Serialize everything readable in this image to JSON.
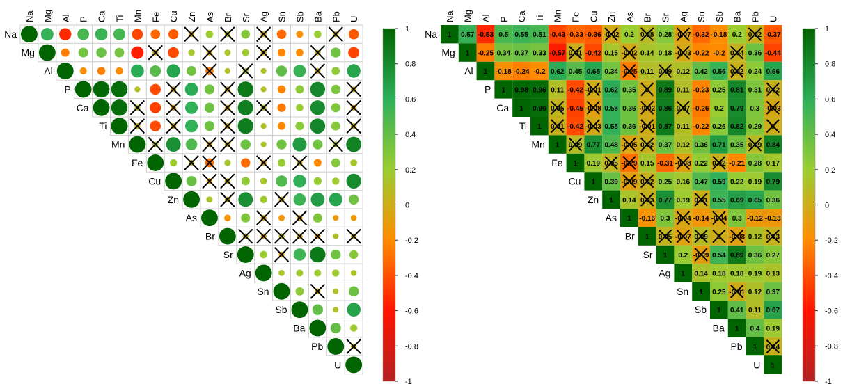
{
  "chart_data": [
    {
      "type": "heatmap",
      "style": "circle",
      "shape": "upper-triangle",
      "variables": [
        "Na",
        "Mg",
        "Al",
        "P",
        "Ca",
        "Ti",
        "Mn",
        "Fe",
        "Cu",
        "Zn",
        "As",
        "Br",
        "Sr",
        "Ag",
        "Sn",
        "Sb",
        "Ba",
        "Pb",
        "U"
      ],
      "colorbar": {
        "ticks": [
          "1",
          "0.8",
          "0.6",
          "0.4",
          "0.2",
          "0",
          "-0.2",
          "-0.4",
          "-0.6",
          "-0.8",
          "-1"
        ],
        "range": [
          -1,
          1
        ]
      },
      "insignificant_marker": "X"
    },
    {
      "type": "heatmap",
      "style": "number",
      "shape": "upper-triangle",
      "variables": [
        "Na",
        "Mg",
        "Al",
        "P",
        "Ca",
        "Ti",
        "Mn",
        "Fe",
        "Cu",
        "Zn",
        "As",
        "Br",
        "Sr",
        "Ag",
        "Sn",
        "Sb",
        "Ba",
        "Pb",
        "U"
      ],
      "colorbar": {
        "ticks": [
          "1",
          "0.8",
          "0.6",
          "0.4",
          "0.2",
          "0",
          "-0.2",
          "-0.4",
          "-0.6",
          "-0.8",
          "-1"
        ],
        "range": [
          -1,
          1
        ]
      },
      "insignificant_marker": "X",
      "matrix": [
        [
          1,
          0.57,
          -0.53,
          0.5,
          0.55,
          0.51,
          -0.43,
          -0.33,
          -0.36,
          -0.02,
          0.2,
          0.08,
          0.28,
          -0.07,
          -0.32,
          -0.18,
          0.2,
          0.02,
          -0.37
        ],
        [
          null,
          1,
          -0.25,
          0.34,
          0.37,
          0.33,
          -0.57,
          0.01,
          -0.42,
          0.15,
          -0.02,
          0.14,
          0.18,
          -0.03,
          -0.22,
          -0.2,
          0.04,
          0.36,
          -0.44
        ],
        [
          null,
          null,
          1,
          -0.18,
          -0.24,
          -0.2,
          0.62,
          0.45,
          0.65,
          0.34,
          -0.25,
          0.11,
          0.09,
          0.12,
          0.42,
          0.56,
          0.02,
          0.24,
          0.66
        ],
        [
          null,
          null,
          null,
          1,
          0.98,
          0.96,
          0.11,
          -0.42,
          -0.01,
          0.62,
          0.35,
          0.0,
          0.89,
          0.11,
          -0.23,
          0.25,
          0.81,
          0.31,
          0.02
        ],
        [
          null,
          null,
          null,
          null,
          1,
          0.96,
          0.05,
          -0.45,
          -0.08,
          0.58,
          0.36,
          -0.02,
          0.86,
          0.07,
          -0.26,
          0.2,
          0.79,
          0.3,
          -0.03
        ],
        [
          null,
          null,
          null,
          null,
          null,
          1,
          0.01,
          -0.42,
          -0.03,
          0.58,
          0.36,
          -0.01,
          0.87,
          0.11,
          -0.22,
          0.26,
          0.82,
          0.29,
          0.0
        ],
        [
          null,
          null,
          null,
          null,
          null,
          null,
          1,
          0.09,
          0.77,
          0.48,
          -0.05,
          0.02,
          0.37,
          0.12,
          0.36,
          0.71,
          0.35,
          0.09,
          0.84
        ],
        [
          null,
          null,
          null,
          null,
          null,
          null,
          null,
          1,
          0.19,
          0.05,
          -0.29,
          0.15,
          -0.31,
          -0.08,
          0.22,
          0.02,
          -0.21,
          0.28,
          0.17
        ],
        [
          null,
          null,
          null,
          null,
          null,
          null,
          null,
          null,
          1,
          0.39,
          -0.09,
          0.02,
          0.25,
          0.16,
          0.47,
          0.59,
          0.22,
          0.19,
          0.79
        ],
        [
          null,
          null,
          null,
          null,
          null,
          null,
          null,
          null,
          null,
          1,
          0.14,
          0.03,
          0.77,
          0.19,
          0.01,
          0.55,
          0.69,
          0.65,
          0.36
        ],
        [
          null,
          null,
          null,
          null,
          null,
          null,
          null,
          null,
          null,
          null,
          1,
          -0.16,
          0.3,
          -0.04,
          -0.14,
          -0.04,
          0.3,
          -0.12,
          -0.13
        ],
        [
          null,
          null,
          null,
          null,
          null,
          null,
          null,
          null,
          null,
          null,
          null,
          1,
          0.05,
          -0.07,
          0.09,
          0.0,
          -0.08,
          0.12,
          0.03
        ],
        [
          null,
          null,
          null,
          null,
          null,
          null,
          null,
          null,
          null,
          null,
          null,
          null,
          1,
          0.2,
          -0.09,
          0.54,
          0.89,
          0.36,
          0.27
        ],
        [
          null,
          null,
          null,
          null,
          null,
          null,
          null,
          null,
          null,
          null,
          null,
          null,
          null,
          1,
          0.14,
          0.18,
          0.18,
          0.19,
          0.13
        ],
        [
          null,
          null,
          null,
          null,
          null,
          null,
          null,
          null,
          null,
          null,
          null,
          null,
          null,
          null,
          1,
          0.25,
          -0.01,
          0.12,
          0.37
        ],
        [
          null,
          null,
          null,
          null,
          null,
          null,
          null,
          null,
          null,
          null,
          null,
          null,
          null,
          null,
          null,
          1,
          0.41,
          0.11,
          0.67
        ],
        [
          null,
          null,
          null,
          null,
          null,
          null,
          null,
          null,
          null,
          null,
          null,
          null,
          null,
          null,
          null,
          null,
          1,
          0.4,
          0.19
        ],
        [
          null,
          null,
          null,
          null,
          null,
          null,
          null,
          null,
          null,
          null,
          null,
          null,
          null,
          null,
          null,
          null,
          null,
          1,
          0.04
        ],
        [
          null,
          null,
          null,
          null,
          null,
          null,
          null,
          null,
          null,
          null,
          null,
          null,
          null,
          null,
          null,
          null,
          null,
          null,
          1
        ]
      ],
      "labels": [
        [
          "1",
          "0.57",
          "-0.53",
          "0.5",
          "0.55",
          "0.51",
          "-0.43",
          "-0.33",
          "-0.36",
          "-0.02",
          "0.2",
          "0.08",
          "0.28",
          "-0.07",
          "-0.32",
          "-0.18",
          "0.2",
          "0.02",
          "-0.37"
        ],
        [
          null,
          "1",
          "-0.25",
          "0.34",
          "0.37",
          "0.33",
          "-0.57",
          "0.01",
          "-0.42",
          "0.15",
          "-0.02",
          "0.14",
          "0.18",
          "-0.03",
          "-0.22",
          "-0.2",
          "0.04",
          "0.36",
          "-0.44"
        ],
        [
          null,
          null,
          "1",
          "-0.18",
          "-0.24",
          "-0.2",
          "0.62",
          "0.45",
          "0.65",
          "0.34",
          "-0.25",
          "0.11",
          "0.09",
          "0.12",
          "0.42",
          "0.56",
          "0.02",
          "0.24",
          "0.66"
        ],
        [
          null,
          null,
          null,
          "1",
          "0.98",
          "0.96",
          "0.11",
          "-0.42",
          "-0.01",
          "0.62",
          "0.35",
          "0",
          "0.89",
          "0.11",
          "-0.23",
          "0.25",
          "0.81",
          "0.31",
          "0.02"
        ],
        [
          null,
          null,
          null,
          null,
          "1",
          "0.96",
          "0.05",
          "-0.45",
          "-0.08",
          "0.58",
          "0.36",
          "-0.02",
          "0.86",
          "0.07",
          "-0.26",
          "0.2",
          "0.79",
          "0.3",
          "-0.03"
        ],
        [
          null,
          null,
          null,
          null,
          null,
          "1",
          "0.01",
          "-0.42",
          "-0.03",
          "0.58",
          "0.36",
          "-0.01",
          "0.87",
          "0.11",
          "-0.22",
          "0.26",
          "0.82",
          "0.29",
          "0"
        ],
        [
          null,
          null,
          null,
          null,
          null,
          null,
          "1",
          "0.09",
          "0.77",
          "0.48",
          "-0.05",
          "0.02",
          "0.37",
          "0.12",
          "0.36",
          "0.71",
          "0.35",
          "0.09",
          "0.84"
        ],
        [
          null,
          null,
          null,
          null,
          null,
          null,
          null,
          "1",
          "0.19",
          "0.05",
          "-0.29",
          "0.15",
          "-0.31",
          "-0.08",
          "0.22",
          "0.02",
          "-0.21",
          "0.28",
          "0.17"
        ],
        [
          null,
          null,
          null,
          null,
          null,
          null,
          null,
          null,
          "1",
          "0.39",
          "-0.09",
          "0.02",
          "0.25",
          "0.16",
          "0.47",
          "0.59",
          "0.22",
          "0.19",
          "0.79"
        ],
        [
          null,
          null,
          null,
          null,
          null,
          null,
          null,
          null,
          null,
          "1",
          "0.14",
          "0.03",
          "0.77",
          "0.19",
          "0.01",
          "0.55",
          "0.69",
          "0.65",
          "0.36"
        ],
        [
          null,
          null,
          null,
          null,
          null,
          null,
          null,
          null,
          null,
          null,
          "1",
          "-0.16",
          "0.3",
          "-0.04",
          "-0.14",
          "-0.04",
          "0.3",
          "-0.12",
          "-0.13"
        ],
        [
          null,
          null,
          null,
          null,
          null,
          null,
          null,
          null,
          null,
          null,
          null,
          "1",
          "0.05",
          "-0.07",
          "0.09",
          "0",
          "-0.08",
          "0.12",
          "0.03"
        ],
        [
          null,
          null,
          null,
          null,
          null,
          null,
          null,
          null,
          null,
          null,
          null,
          null,
          "1",
          "0.2",
          "-0.09",
          "0.54",
          "0.89",
          "0.36",
          "0.27"
        ],
        [
          null,
          null,
          null,
          null,
          null,
          null,
          null,
          null,
          null,
          null,
          null,
          null,
          null,
          "1",
          "0.14",
          "0.18",
          "0.18",
          "0.19",
          "0.13"
        ],
        [
          null,
          null,
          null,
          null,
          null,
          null,
          null,
          null,
          null,
          null,
          null,
          null,
          null,
          null,
          "1",
          "0.25",
          "-0.01",
          "0.12",
          "0.37"
        ],
        [
          null,
          null,
          null,
          null,
          null,
          null,
          null,
          null,
          null,
          null,
          null,
          null,
          null,
          null,
          null,
          "1",
          "0.41",
          "0.11",
          "0.67"
        ],
        [
          null,
          null,
          null,
          null,
          null,
          null,
          null,
          null,
          null,
          null,
          null,
          null,
          null,
          null,
          null,
          null,
          "1",
          "0.4",
          "0.19"
        ],
        [
          null,
          null,
          null,
          null,
          null,
          null,
          null,
          null,
          null,
          null,
          null,
          null,
          null,
          null,
          null,
          null,
          null,
          "1",
          "0.04"
        ],
        [
          null,
          null,
          null,
          null,
          null,
          null,
          null,
          null,
          null,
          null,
          null,
          null,
          null,
          null,
          null,
          null,
          null,
          null,
          "1"
        ]
      ],
      "insignificant_cells": [
        [
          0,
          9
        ],
        [
          0,
          11
        ],
        [
          0,
          13
        ],
        [
          0,
          17
        ],
        [
          1,
          7
        ],
        [
          1,
          10
        ],
        [
          1,
          13
        ],
        [
          1,
          16
        ],
        [
          2,
          10
        ],
        [
          2,
          12
        ],
        [
          2,
          16
        ],
        [
          3,
          8
        ],
        [
          3,
          11
        ],
        [
          3,
          18
        ],
        [
          4,
          6
        ],
        [
          4,
          8
        ],
        [
          4,
          11
        ],
        [
          4,
          13
        ],
        [
          4,
          18
        ],
        [
          5,
          6
        ],
        [
          5,
          8
        ],
        [
          5,
          11
        ],
        [
          5,
          18
        ],
        [
          6,
          7
        ],
        [
          6,
          10
        ],
        [
          6,
          11
        ],
        [
          6,
          17
        ],
        [
          7,
          9
        ],
        [
          7,
          10
        ],
        [
          7,
          13
        ],
        [
          7,
          15
        ],
        [
          8,
          10
        ],
        [
          8,
          11
        ],
        [
          9,
          11
        ],
        [
          9,
          14
        ],
        [
          10,
          13
        ],
        [
          10,
          15
        ],
        [
          11,
          12
        ],
        [
          11,
          13
        ],
        [
          11,
          14
        ],
        [
          11,
          15
        ],
        [
          11,
          16
        ],
        [
          11,
          18
        ],
        [
          12,
          14
        ],
        [
          14,
          16
        ],
        [
          17,
          18
        ]
      ]
    }
  ]
}
